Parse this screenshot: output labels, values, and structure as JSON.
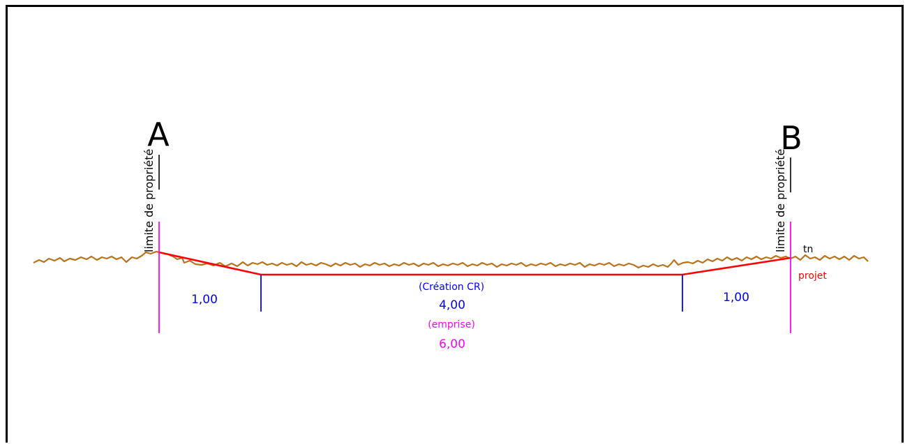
{
  "points": {
    "a": "A",
    "b": "B"
  },
  "property_limit_label": "limite de propriété",
  "terrain_label": "tn",
  "project_label": "projet",
  "dimensions": {
    "left_shoulder": "1,00",
    "right_shoulder": "1,00",
    "road_caption": "(Création CR)",
    "road_width": "4,00",
    "footprint_caption": "(emprise)",
    "footprint_width": "6,00"
  },
  "colors": {
    "terrain": "#b8731a",
    "project": "#ff0000",
    "limit": "#ff00ff",
    "dimension": "#0000ff",
    "text": "#000000"
  }
}
